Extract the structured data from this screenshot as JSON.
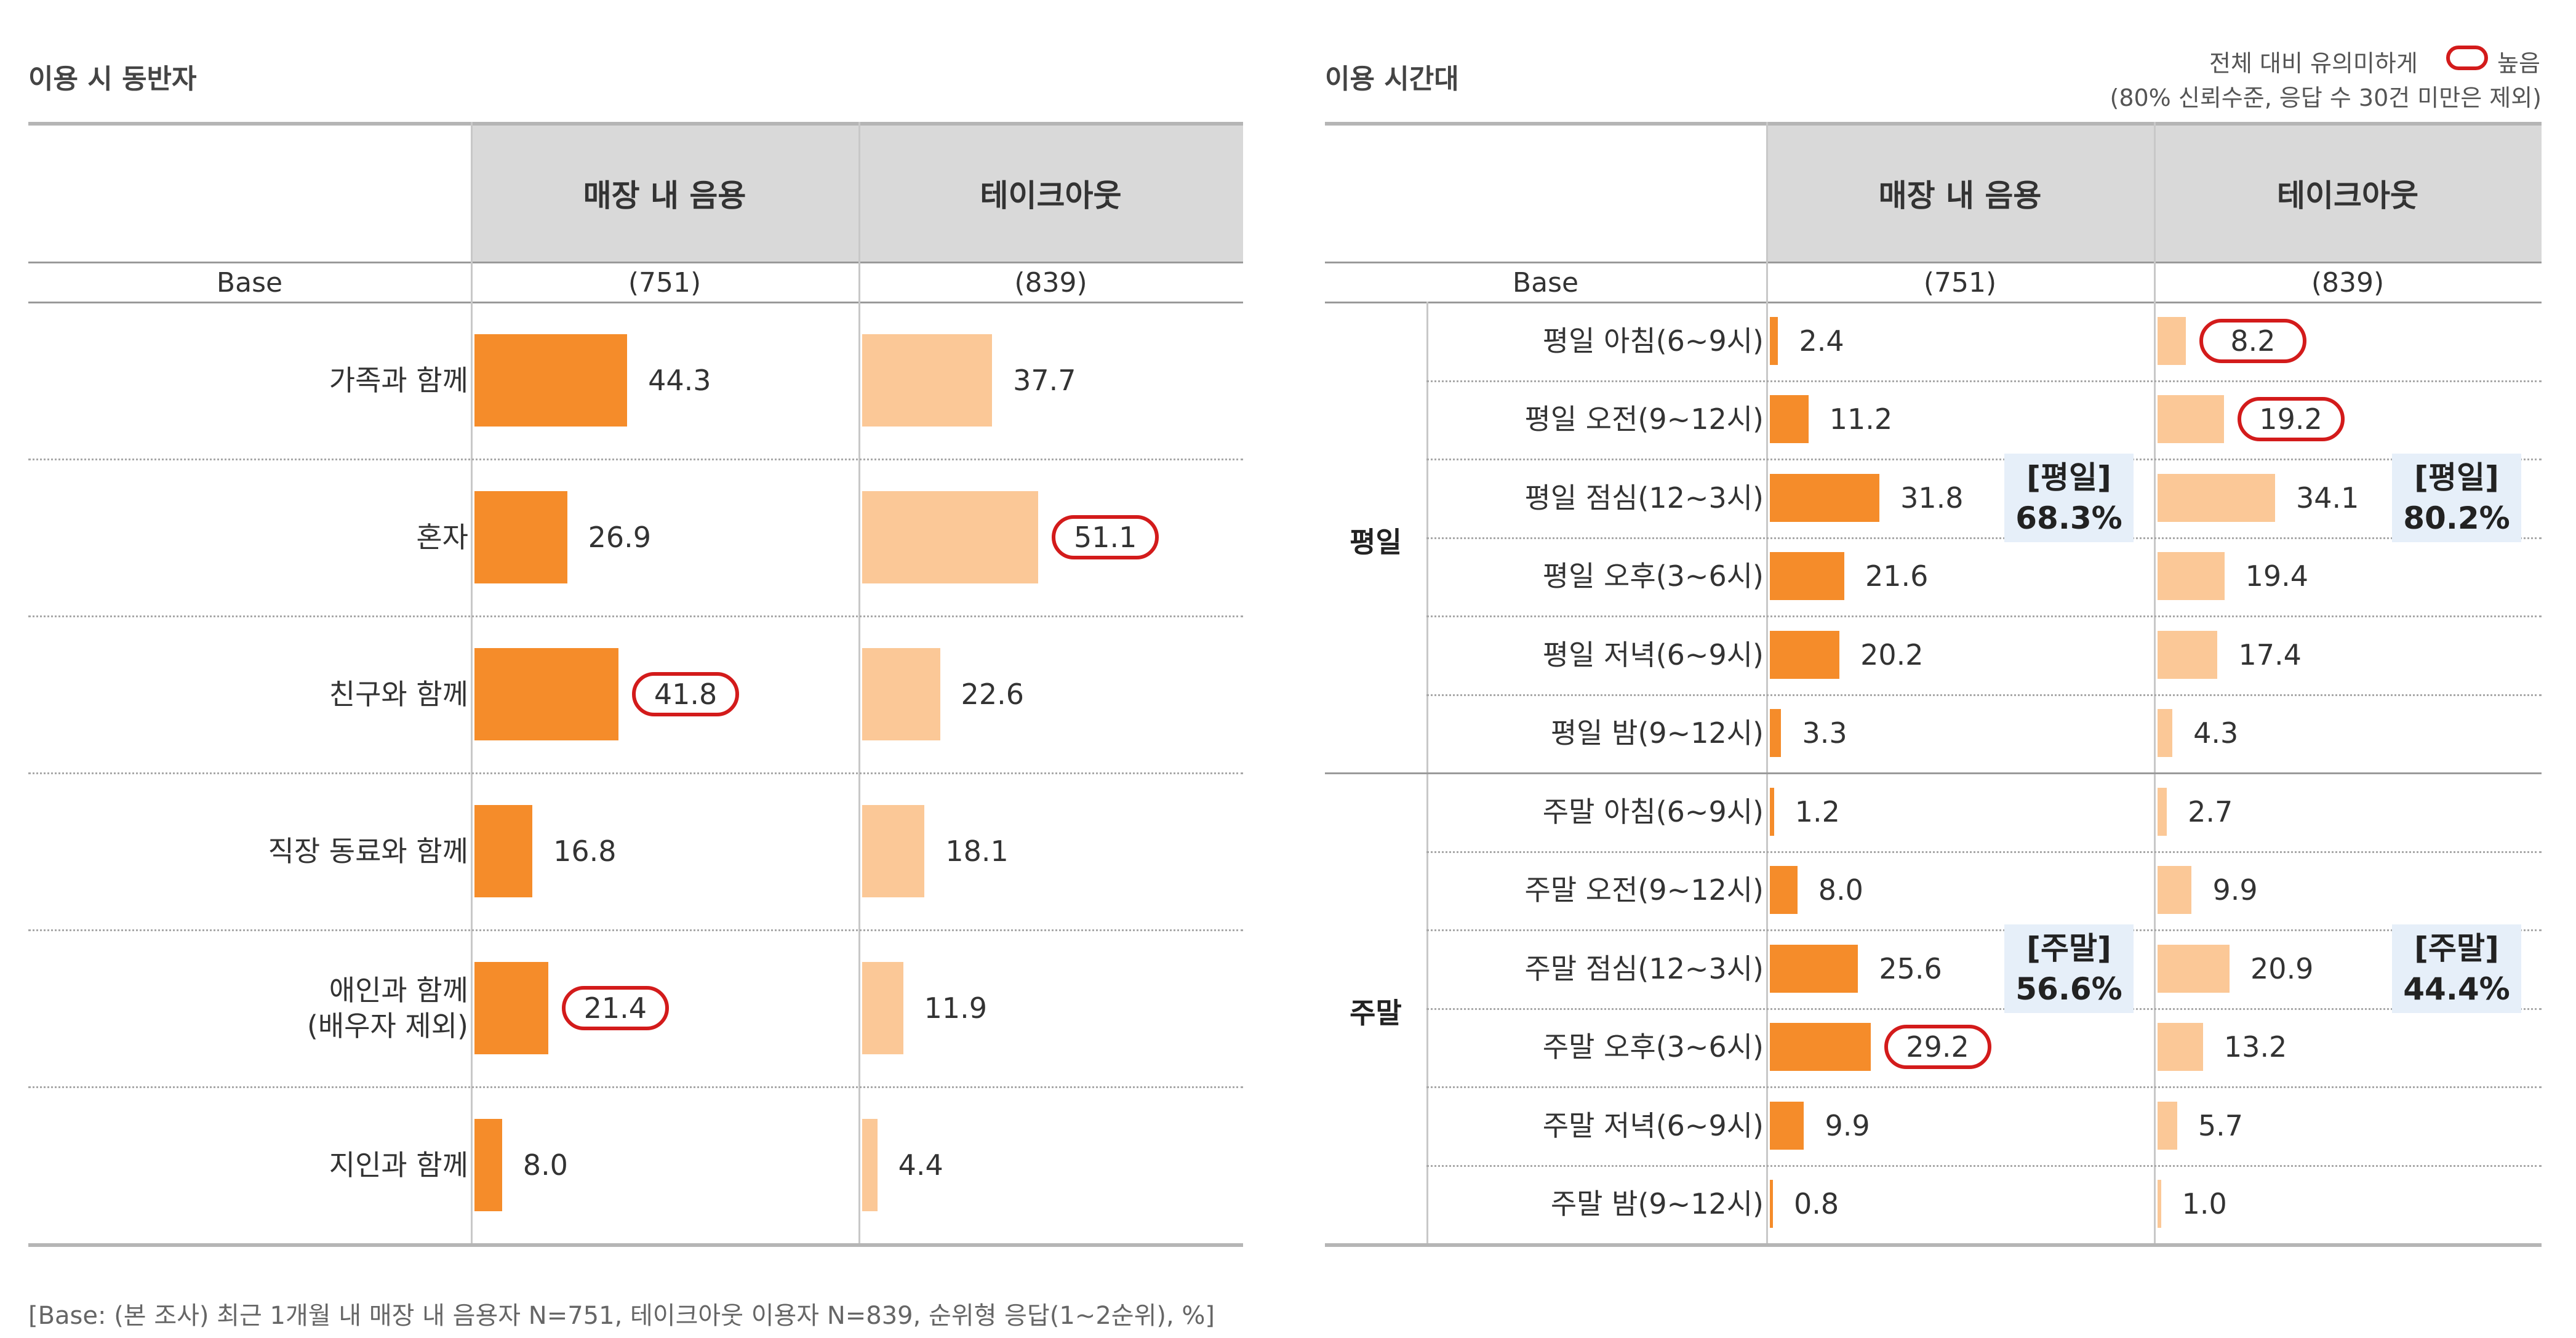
{
  "colors": {
    "in_store": "#f58c2a",
    "takeout": "#fbc897",
    "highlight": "#d31b1b",
    "header_bg": "#d9d9d9",
    "summary_bg": "#e6eff9"
  },
  "legend": {
    "line1": "전체 대비 유의미하게",
    "marker": "높음",
    "line2": "(80% 신뢰수준, 응답 수 30건 미만은 제외)"
  },
  "footnote": "[Base: (본 조사) 최근 1개월 내 매장 내 음용자 N=751, 테이크아웃 이용자 N=839, 순위형 응답(1~2순위), %]",
  "chart_data": [
    {
      "type": "bar",
      "title": "이용 시 동반자",
      "columns": [
        "매장 내 음용",
        "테이크아웃"
      ],
      "base_label": "Base",
      "bases": [
        "(751)",
        "(839)"
      ],
      "categories": [
        "가족과 함께",
        "혼자",
        "친구와 함께",
        "직장 동료와 함께",
        "애인과 함께\n(배우자 제외)",
        "지인과 함께"
      ],
      "series": [
        {
          "name": "매장 내 음용",
          "values": [
            44.3,
            26.9,
            41.8,
            16.8,
            21.4,
            8.0
          ],
          "highlight": [
            false,
            false,
            true,
            false,
            true,
            false
          ]
        },
        {
          "name": "테이크아웃",
          "values": [
            37.7,
            51.1,
            22.6,
            18.1,
            11.9,
            4.4
          ],
          "highlight": [
            false,
            true,
            false,
            false,
            false,
            false
          ]
        }
      ]
    },
    {
      "type": "bar",
      "title": "이용 시간대",
      "columns": [
        "매장 내 음용",
        "테이크아웃"
      ],
      "base_label": "Base",
      "bases": [
        "(751)",
        "(839)"
      ],
      "groups": [
        {
          "name": "평일",
          "start": 0,
          "count": 6,
          "summary": {
            "label": "[평일]",
            "in_store": "68.3%",
            "takeout": "80.2%"
          }
        },
        {
          "name": "주말",
          "start": 6,
          "count": 6,
          "summary": {
            "label": "[주말]",
            "in_store": "56.6%",
            "takeout": "44.4%"
          }
        }
      ],
      "categories": [
        "평일 아침(6~9시)",
        "평일 오전(9~12시)",
        "평일 점심(12~3시)",
        "평일 오후(3~6시)",
        "평일 저녁(6~9시)",
        "평일 밤(9~12시)",
        "주말 아침(6~9시)",
        "주말 오전(9~12시)",
        "주말 점심(12~3시)",
        "주말 오후(3~6시)",
        "주말 저녁(6~9시)",
        "주말 밤(9~12시)"
      ],
      "series": [
        {
          "name": "매장 내 음용",
          "values": [
            2.4,
            11.2,
            31.8,
            21.6,
            20.2,
            3.3,
            1.2,
            8.0,
            25.6,
            29.2,
            9.9,
            0.8
          ],
          "highlight": [
            false,
            false,
            false,
            false,
            false,
            false,
            false,
            false,
            false,
            true,
            false,
            false
          ]
        },
        {
          "name": "테이크아웃",
          "values": [
            8.2,
            19.2,
            34.1,
            19.4,
            17.4,
            4.3,
            2.7,
            9.9,
            20.9,
            13.2,
            5.7,
            1.0
          ],
          "highlight": [
            true,
            true,
            false,
            false,
            false,
            false,
            false,
            false,
            false,
            false,
            false,
            false
          ]
        }
      ]
    }
  ]
}
